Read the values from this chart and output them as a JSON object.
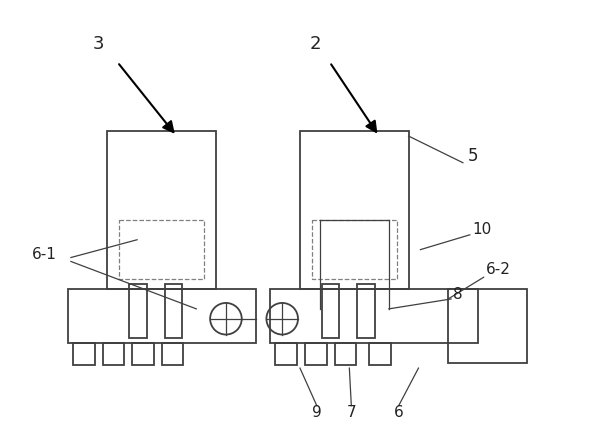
{
  "bg_color": "#ffffff",
  "line_color": "#404040",
  "dashed_color": "#808080",
  "figsize": [
    5.97,
    4.4
  ],
  "dpi": 100
}
